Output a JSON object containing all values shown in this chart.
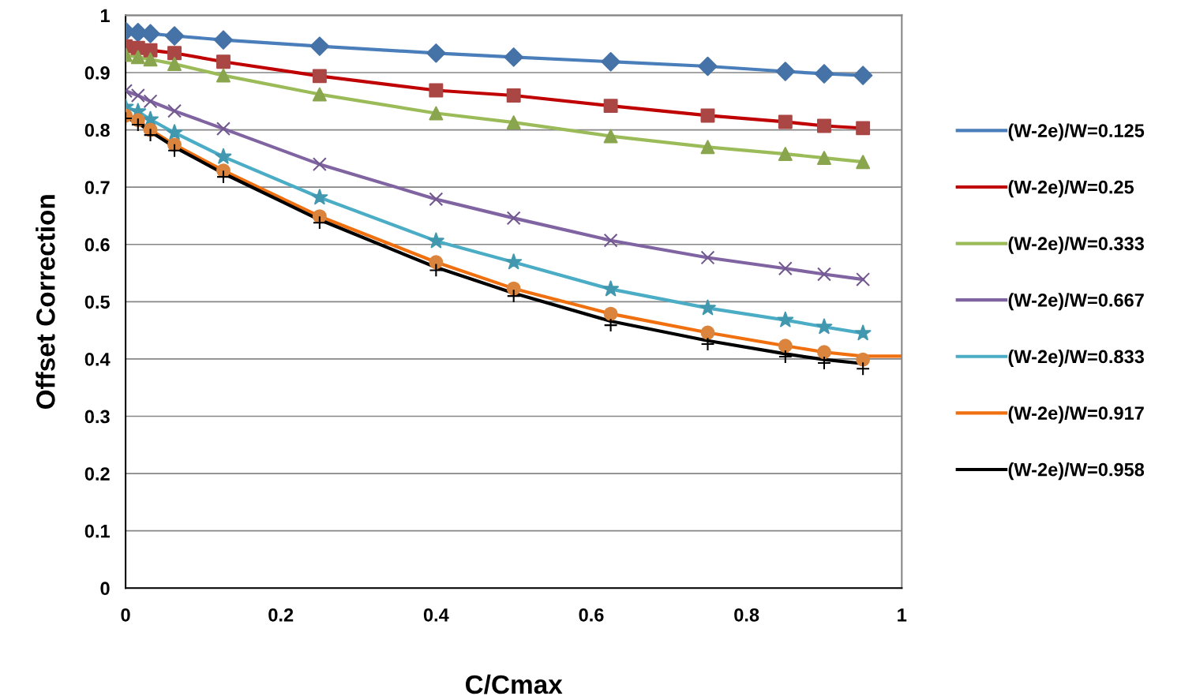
{
  "chart_data": {
    "type": "line",
    "xlabel": "C/Cmax",
    "ylabel": "Offset Correction",
    "x": [
      0,
      0.016,
      0.032,
      0.063,
      0.126,
      0.25,
      0.4,
      0.5,
      0.625,
      0.75,
      0.85,
      0.9,
      0.95
    ],
    "xlim": [
      0,
      1
    ],
    "xticks": [
      0,
      0.2,
      0.4,
      0.6,
      0.8,
      1
    ],
    "ylim": [
      0,
      1
    ],
    "yticks": [
      0,
      0.1,
      0.2,
      0.3,
      0.4,
      0.5,
      0.6,
      0.7,
      0.8,
      0.9,
      1
    ],
    "grid": "y",
    "legend": "right",
    "marker": "none",
    "line_style": "solid",
    "series": [
      {
        "name": "(W-2e)/W=0.125",
        "color": "#4a7ebb",
        "values": [
          0.972,
          0.97,
          0.968,
          0.964,
          0.957,
          0.946,
          0.934,
          0.927,
          0.919,
          0.911,
          0.902,
          0.898,
          0.895
        ]
      },
      {
        "name": "(W-2e)/W=0.25",
        "color": "#c00000",
        "values": [
          0.946,
          0.943,
          0.939,
          0.934,
          0.919,
          0.894,
          0.869,
          0.86,
          0.842,
          0.825,
          0.814,
          0.807,
          0.803
        ]
      },
      {
        "name": "(W-2e)/W=0.333",
        "color": "#9bbb59",
        "values": [
          0.931,
          0.927,
          0.923,
          0.915,
          0.895,
          0.862,
          0.829,
          0.813,
          0.789,
          0.77,
          0.758,
          0.751,
          0.744
        ]
      },
      {
        "name": "(W-2e)/W=0.667",
        "color": "#8064a2",
        "values": [
          0.868,
          0.86,
          0.85,
          0.833,
          0.802,
          0.74,
          0.679,
          0.646,
          0.607,
          0.577,
          0.558,
          0.548,
          0.539
        ]
      },
      {
        "name": "(W-2e)/W=0.833",
        "color": "#4bacc6",
        "values": [
          0.84,
          0.832,
          0.818,
          0.795,
          0.753,
          0.682,
          0.606,
          0.569,
          0.522,
          0.489,
          0.468,
          0.456,
          0.445
        ]
      },
      {
        "name": "(W-2e)/W=0.917",
        "color": "#f07010",
        "x": [
          0,
          0.016,
          0.032,
          0.063,
          0.126,
          0.25,
          0.4,
          0.5,
          0.625,
          0.75,
          0.85,
          0.9,
          0.95,
          1
        ],
        "values": [
          0.825,
          0.817,
          0.8,
          0.774,
          0.729,
          0.649,
          0.569,
          0.523,
          0.479,
          0.446,
          0.423,
          0.412,
          0.405,
          0.405
        ]
      },
      {
        "name": "(W-2e)/W=0.958",
        "color": "#000000",
        "values": [
          0.822,
          0.812,
          0.797,
          0.77,
          0.724,
          0.643,
          0.56,
          0.515,
          0.466,
          0.432,
          0.409,
          0.399,
          0.392
        ]
      },
      {
        "type": "scatter",
        "marker": "diamond",
        "color": "#4572a7",
        "values": [
          0.972,
          0.97,
          0.968,
          0.964,
          0.957,
          0.946,
          0.934,
          0.927,
          0.919,
          0.911,
          0.902,
          0.898,
          0.895
        ]
      },
      {
        "type": "scatter",
        "marker": "square",
        "color": "#aa4643",
        "values": [
          0.946,
          0.943,
          0.939,
          0.934,
          0.919,
          0.894,
          0.869,
          0.86,
          0.842,
          0.825,
          0.814,
          0.807,
          0.803
        ]
      },
      {
        "type": "scatter",
        "marker": "triangle",
        "color": "#89a54e",
        "values": [
          0.931,
          0.927,
          0.923,
          0.915,
          0.895,
          0.862,
          0.829,
          0.813,
          0.789,
          0.77,
          0.758,
          0.751,
          0.744
        ]
      },
      {
        "type": "scatter",
        "marker": "cross",
        "color": "#71588f",
        "values": [
          0.868,
          0.86,
          0.85,
          0.833,
          0.802,
          0.74,
          0.679,
          0.646,
          0.607,
          0.577,
          0.558,
          0.548,
          0.539
        ]
      },
      {
        "type": "scatter",
        "marker": "star",
        "color": "#4198af",
        "values": [
          0.84,
          0.832,
          0.818,
          0.795,
          0.753,
          0.682,
          0.606,
          0.569,
          0.522,
          0.489,
          0.468,
          0.456,
          0.445
        ]
      },
      {
        "type": "scatter",
        "marker": "circle",
        "color": "#db843d",
        "values": [
          0.825,
          0.817,
          0.8,
          0.774,
          0.729,
          0.649,
          0.569,
          0.523,
          0.479,
          0.446,
          0.423,
          0.412,
          0.399
        ]
      },
      {
        "type": "scatter",
        "marker": "plus",
        "color": "#000000",
        "values": [
          0.82,
          0.809,
          0.791,
          0.764,
          0.718,
          0.638,
          0.555,
          0.51,
          0.459,
          0.426,
          0.404,
          0.393,
          0.383
        ]
      }
    ]
  }
}
